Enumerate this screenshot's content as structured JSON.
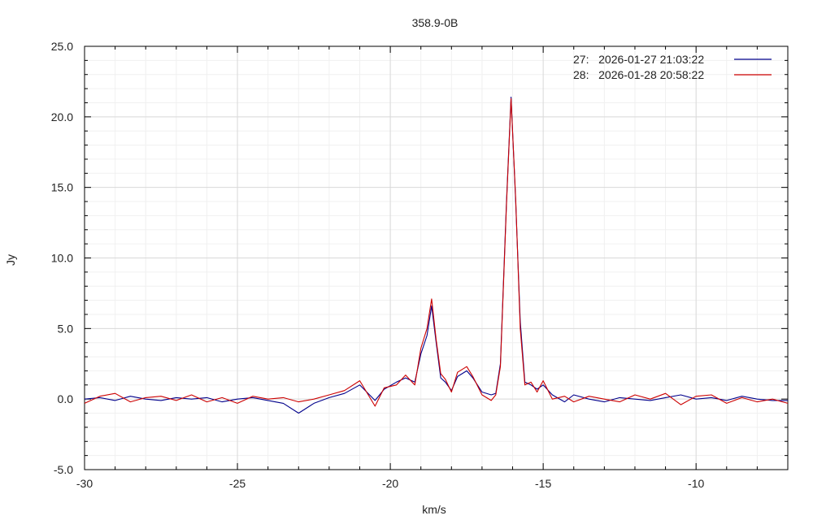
{
  "chart_data": {
    "type": "line",
    "title": "358.9-0B",
    "xlabel": "km/s",
    "ylabel": "Jy",
    "xlim": [
      -30,
      -7
    ],
    "ylim": [
      -5,
      25
    ],
    "x_ticks": [
      -30,
      -25,
      -20,
      -15,
      -10
    ],
    "x_tick_labels": [
      "-30",
      "-25",
      "-20",
      "-15",
      "-10"
    ],
    "y_ticks": [
      -5,
      0,
      5,
      10,
      15,
      20,
      25
    ],
    "y_tick_labels": [
      "-5.0",
      "0.0",
      "5.0",
      "10.0",
      "15.0",
      "20.0",
      "25.0"
    ],
    "grid": true,
    "legend_position": "top-right",
    "series": [
      {
        "name": "27:   2026-01-27 21:03:22",
        "color": "#00008b",
        "points": [
          [
            -30.0,
            0.0
          ],
          [
            -29.5,
            0.1
          ],
          [
            -29.0,
            -0.1
          ],
          [
            -28.5,
            0.2
          ],
          [
            -28.0,
            0.0
          ],
          [
            -27.5,
            -0.1
          ],
          [
            -27.0,
            0.1
          ],
          [
            -26.5,
            0.0
          ],
          [
            -26.0,
            0.1
          ],
          [
            -25.5,
            -0.2
          ],
          [
            -25.0,
            0.0
          ],
          [
            -24.5,
            0.1
          ],
          [
            -24.0,
            -0.1
          ],
          [
            -23.5,
            -0.3
          ],
          [
            -23.0,
            -1.0
          ],
          [
            -22.5,
            -0.3
          ],
          [
            -22.0,
            0.1
          ],
          [
            -21.5,
            0.4
          ],
          [
            -21.0,
            1.0
          ],
          [
            -20.5,
            -0.1
          ],
          [
            -20.2,
            0.7
          ],
          [
            -19.8,
            1.2
          ],
          [
            -19.5,
            1.5
          ],
          [
            -19.2,
            1.2
          ],
          [
            -19.0,
            3.2
          ],
          [
            -18.8,
            4.5
          ],
          [
            -18.65,
            6.6
          ],
          [
            -18.5,
            4.0
          ],
          [
            -18.35,
            1.5
          ],
          [
            -18.2,
            1.2
          ],
          [
            -18.0,
            0.6
          ],
          [
            -17.8,
            1.6
          ],
          [
            -17.5,
            2.0
          ],
          [
            -17.3,
            1.5
          ],
          [
            -17.0,
            0.5
          ],
          [
            -16.7,
            0.3
          ],
          [
            -16.55,
            0.4
          ],
          [
            -16.4,
            2.5
          ],
          [
            -16.2,
            14.0
          ],
          [
            -16.05,
            21.4
          ],
          [
            -15.9,
            14.0
          ],
          [
            -15.75,
            5.5
          ],
          [
            -15.6,
            1.2
          ],
          [
            -15.4,
            1.0
          ],
          [
            -15.2,
            0.7
          ],
          [
            -15.0,
            1.0
          ],
          [
            -14.7,
            0.3
          ],
          [
            -14.3,
            -0.2
          ],
          [
            -14.0,
            0.3
          ],
          [
            -13.5,
            0.0
          ],
          [
            -13.0,
            -0.2
          ],
          [
            -12.5,
            0.1
          ],
          [
            -12.0,
            0.0
          ],
          [
            -11.5,
            -0.1
          ],
          [
            -11.0,
            0.1
          ],
          [
            -10.5,
            0.3
          ],
          [
            -10.0,
            0.0
          ],
          [
            -9.5,
            0.1
          ],
          [
            -9.0,
            -0.1
          ],
          [
            -8.5,
            0.2
          ],
          [
            -8.0,
            0.0
          ],
          [
            -7.5,
            -0.1
          ],
          [
            -7.0,
            -0.1
          ]
        ]
      },
      {
        "name": "28:   2026-01-28 20:58:22",
        "color": "#cc0000",
        "points": [
          [
            -30.0,
            -0.3
          ],
          [
            -29.5,
            0.2
          ],
          [
            -29.0,
            0.4
          ],
          [
            -28.5,
            -0.2
          ],
          [
            -28.0,
            0.1
          ],
          [
            -27.5,
            0.2
          ],
          [
            -27.0,
            -0.1
          ],
          [
            -26.5,
            0.3
          ],
          [
            -26.0,
            -0.2
          ],
          [
            -25.5,
            0.1
          ],
          [
            -25.0,
            -0.3
          ],
          [
            -24.5,
            0.2
          ],
          [
            -24.0,
            0.0
          ],
          [
            -23.5,
            0.1
          ],
          [
            -23.0,
            -0.2
          ],
          [
            -22.5,
            0.0
          ],
          [
            -22.0,
            0.3
          ],
          [
            -21.5,
            0.6
          ],
          [
            -21.0,
            1.3
          ],
          [
            -20.5,
            -0.5
          ],
          [
            -20.2,
            0.8
          ],
          [
            -19.8,
            1.0
          ],
          [
            -19.5,
            1.7
          ],
          [
            -19.2,
            1.0
          ],
          [
            -19.0,
            3.6
          ],
          [
            -18.8,
            5.0
          ],
          [
            -18.65,
            7.1
          ],
          [
            -18.5,
            4.2
          ],
          [
            -18.35,
            1.8
          ],
          [
            -18.2,
            1.4
          ],
          [
            -18.0,
            0.5
          ],
          [
            -17.8,
            1.9
          ],
          [
            -17.5,
            2.3
          ],
          [
            -17.3,
            1.6
          ],
          [
            -17.0,
            0.3
          ],
          [
            -16.7,
            -0.1
          ],
          [
            -16.55,
            0.3
          ],
          [
            -16.4,
            2.3
          ],
          [
            -16.2,
            13.8
          ],
          [
            -16.05,
            21.3
          ],
          [
            -15.9,
            14.2
          ],
          [
            -15.75,
            5.0
          ],
          [
            -15.6,
            1.0
          ],
          [
            -15.4,
            1.2
          ],
          [
            -15.2,
            0.5
          ],
          [
            -15.0,
            1.3
          ],
          [
            -14.7,
            0.0
          ],
          [
            -14.3,
            0.2
          ],
          [
            -14.0,
            -0.2
          ],
          [
            -13.5,
            0.2
          ],
          [
            -13.0,
            0.0
          ],
          [
            -12.5,
            -0.2
          ],
          [
            -12.0,
            0.3
          ],
          [
            -11.5,
            0.0
          ],
          [
            -11.0,
            0.4
          ],
          [
            -10.5,
            -0.4
          ],
          [
            -10.0,
            0.2
          ],
          [
            -9.5,
            0.3
          ],
          [
            -9.0,
            -0.3
          ],
          [
            -8.5,
            0.1
          ],
          [
            -8.0,
            -0.2
          ],
          [
            -7.5,
            0.0
          ],
          [
            -7.0,
            -0.3
          ]
        ]
      }
    ]
  }
}
